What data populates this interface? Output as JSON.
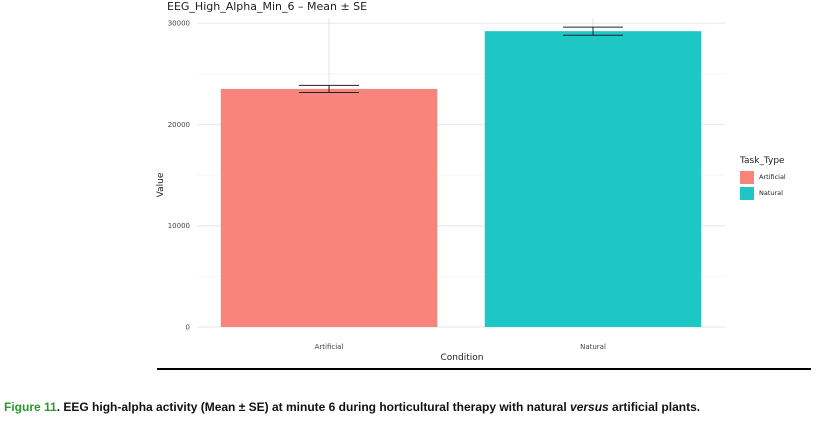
{
  "chart_data": {
    "type": "bar",
    "title": "EEG_High_Alpha_Min_6 – Mean ± SE",
    "xlabel": "Condition",
    "ylabel": "Value",
    "ylim": [
      0,
      30500
    ],
    "yticks": [
      0,
      10000,
      20000,
      30000
    ],
    "categories": [
      "Artificial",
      "Natural"
    ],
    "values": [
      23500,
      29200
    ],
    "se": [
      350,
      400
    ],
    "colors": [
      "#f8847c",
      "#1fc6c6"
    ],
    "legend": {
      "title": "Task_Type",
      "entries": [
        "Artificial",
        "Natural"
      ],
      "position": "right"
    },
    "grid": true
  },
  "caption": {
    "label": "Figure 11",
    "text_before": ". EEG high-alpha activity (Mean ± SE) at minute 6 during horticultural therapy with natural ",
    "italic": "versus",
    "text_after": " artificial plants."
  }
}
